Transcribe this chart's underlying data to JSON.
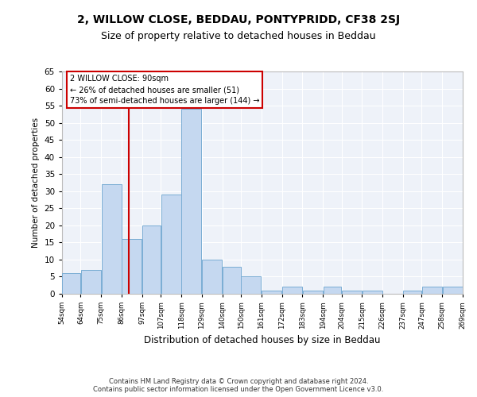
{
  "title": "2, WILLOW CLOSE, BEDDAU, PONTYPRIDD, CF38 2SJ",
  "subtitle": "Size of property relative to detached houses in Beddau",
  "xlabel": "Distribution of detached houses by size in Beddau",
  "ylabel": "Number of detached properties",
  "footer_line1": "Contains HM Land Registry data © Crown copyright and database right 2024.",
  "footer_line2": "Contains public sector information licensed under the Open Government Licence v3.0.",
  "annotation_title": "2 WILLOW CLOSE: 90sqm",
  "annotation_line1": "← 26% of detached houses are smaller (51)",
  "annotation_line2": "73% of semi-detached houses are larger (144) →",
  "bar_left_edges": [
    54,
    64,
    75,
    86,
    97,
    107,
    118,
    129,
    140,
    150,
    161,
    172,
    183,
    194,
    204,
    215,
    226,
    237,
    247,
    258
  ],
  "bar_widths": [
    10,
    11,
    11,
    11,
    10,
    11,
    11,
    11,
    10,
    11,
    11,
    11,
    11,
    10,
    11,
    11,
    11,
    10,
    11,
    11
  ],
  "bar_heights": [
    6,
    7,
    32,
    16,
    20,
    29,
    54,
    10,
    8,
    5,
    1,
    2,
    1,
    2,
    1,
    1,
    0,
    1,
    2,
    2
  ],
  "bar_color": "#c5d8f0",
  "bar_edge_color": "#7aadd4",
  "tick_labels": [
    "54sqm",
    "64sqm",
    "75sqm",
    "86sqm",
    "97sqm",
    "107sqm",
    "118sqm",
    "129sqm",
    "140sqm",
    "150sqm",
    "161sqm",
    "172sqm",
    "183sqm",
    "194sqm",
    "204sqm",
    "215sqm",
    "226sqm",
    "237sqm",
    "247sqm",
    "258sqm",
    "269sqm"
  ],
  "property_line_x": 90,
  "property_line_color": "#cc0000",
  "ylim": [
    0,
    65
  ],
  "yticks": [
    0,
    5,
    10,
    15,
    20,
    25,
    30,
    35,
    40,
    45,
    50,
    55,
    60,
    65
  ],
  "bg_color": "#eef2f9",
  "annotation_box_color": "#cc0000",
  "title_fontsize": 10,
  "subtitle_fontsize": 9,
  "footer_fontsize": 6
}
